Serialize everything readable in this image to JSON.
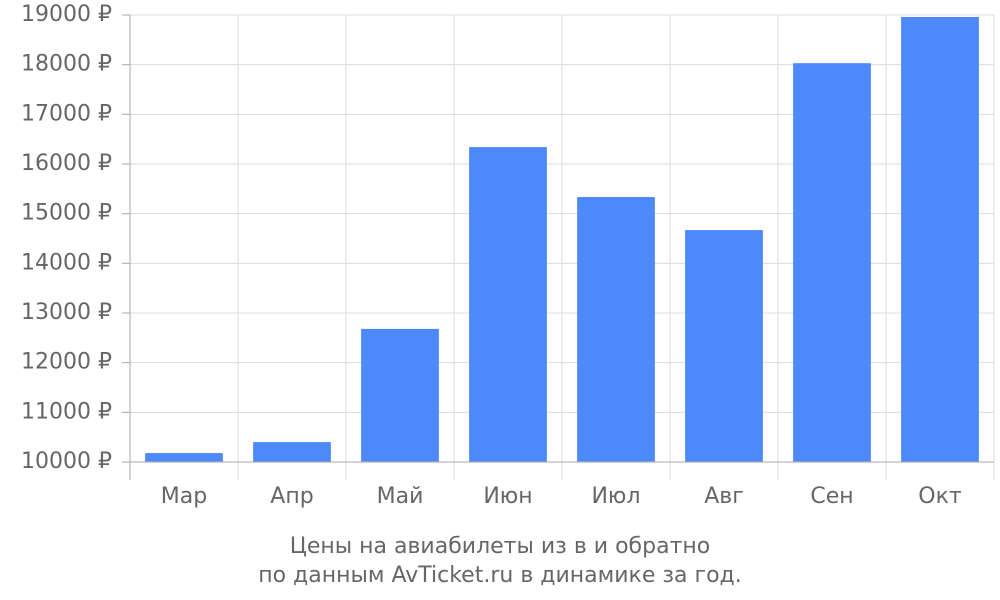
{
  "chart_data": {
    "type": "bar",
    "title": "Цены на авиабилеты из  в  и обратно",
    "subtitle": "по данным AvTicket.ru в динамике за год.",
    "categories": [
      "Мар",
      "Апр",
      "Май",
      "Июн",
      "Июл",
      "Авг",
      "Сен",
      "Окт"
    ],
    "values": [
      10180,
      10400,
      12680,
      16340,
      15335,
      14670,
      18030,
      18960
    ],
    "color": "#4d89f9",
    "ylim": [
      10000,
      19000
    ],
    "yticks": [
      {
        "value": 10000,
        "label": "10000 ₽"
      },
      {
        "value": 11000,
        "label": "11000 ₽"
      },
      {
        "value": 12000,
        "label": "12000 ₽"
      },
      {
        "value": 13000,
        "label": "13000 ₽"
      },
      {
        "value": 14000,
        "label": "14000 ₽"
      },
      {
        "value": 15000,
        "label": "15000 ₽"
      },
      {
        "value": 16000,
        "label": "16000 ₽"
      },
      {
        "value": 17000,
        "label": "17000 ₽"
      },
      {
        "value": 18000,
        "label": "18000 ₽"
      },
      {
        "value": 19000,
        "label": "19000 ₽"
      }
    ],
    "grid": true
  }
}
